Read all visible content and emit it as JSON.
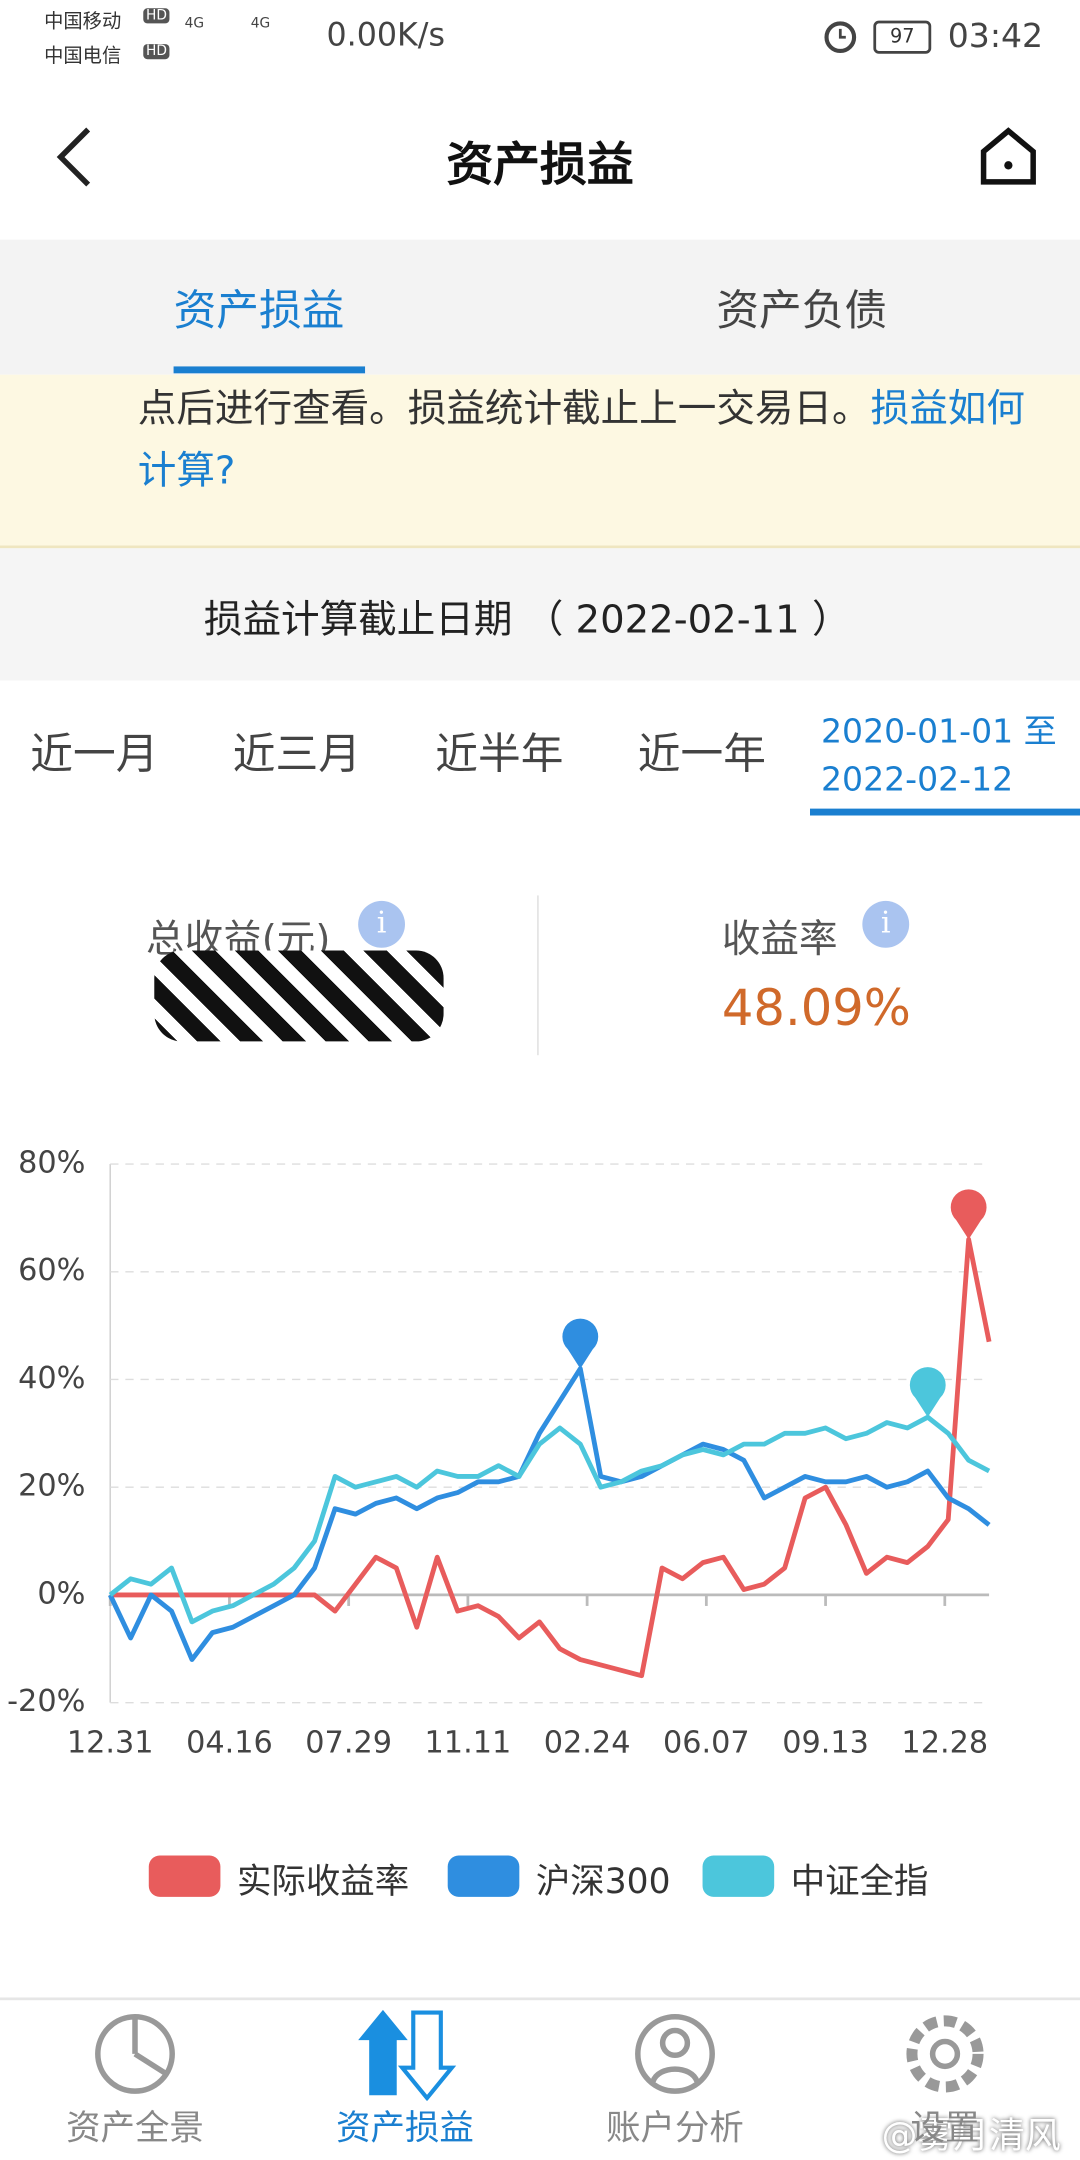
{
  "status_bar": {
    "carrier1": "中国移动",
    "carrier2": "中国电信",
    "hd": "HD",
    "network": "4G",
    "speed": "0.00K/s",
    "battery": "97",
    "time": "03:42"
  },
  "header": {
    "title": "资产损益"
  },
  "tabs": [
    "资产损益",
    "资产负债"
  ],
  "notice": {
    "text": "点后进行查看。损益统计截止上一交易日。",
    "link": "损益如何计算?"
  },
  "cutoff": "损益计算截止日期 （ 2022-02-11 ）",
  "periods": [
    "近一月",
    "近三月",
    "近半年",
    "近一年"
  ],
  "custom_range": {
    "start": "2020-01-01 至",
    "end": "2022-02-12"
  },
  "stats": {
    "total_label": "总收益(元)",
    "rate_label": "收益率",
    "rate_value": "48.09%"
  },
  "chart_data": {
    "type": "line",
    "x": [
      0,
      12,
      24,
      36,
      48,
      60,
      72,
      84,
      96,
      108,
      120,
      132,
      144,
      156,
      168,
      180,
      192,
      204,
      216,
      228,
      240,
      252,
      264,
      276,
      288,
      300,
      312,
      324,
      336,
      348,
      360,
      372,
      384,
      396,
      408,
      420,
      432,
      444,
      456,
      468,
      480,
      492,
      504,
      516
    ],
    "xlim": [
      0,
      516
    ],
    "xticks": [
      {
        "value": 0,
        "label": "12.31"
      },
      {
        "value": 70,
        "label": "04.16"
      },
      {
        "value": 140,
        "label": "07.29"
      },
      {
        "value": 210,
        "label": "11.11"
      },
      {
        "value": 280,
        "label": "02.24"
      },
      {
        "value": 350,
        "label": "06.07"
      },
      {
        "value": 420,
        "label": "09.13"
      },
      {
        "value": 490,
        "label": "12.28"
      }
    ],
    "ylim": [
      -20,
      80
    ],
    "yticks": [
      {
        "value": -20,
        "label": "-20%"
      },
      {
        "value": 0,
        "label": "0%"
      },
      {
        "value": 20,
        "label": "20%"
      },
      {
        "value": 40,
        "label": "40%"
      },
      {
        "value": 60,
        "label": "60%"
      },
      {
        "value": 80,
        "label": "80%"
      }
    ],
    "grid": true,
    "series": [
      {
        "name": "实际收益率",
        "color": "#e85c5c",
        "values": [
          0,
          0,
          0,
          0,
          0,
          0,
          0,
          0,
          0,
          0,
          0,
          -3,
          2,
          7,
          5,
          -6,
          7,
          -3,
          -2,
          -4,
          -8,
          -5,
          -10,
          -12,
          -13,
          -14,
          -15,
          5,
          3,
          6,
          7,
          1,
          2,
          5,
          18,
          20,
          13,
          4,
          7,
          6,
          9,
          14,
          66,
          47
        ]
      },
      {
        "name": "沪深300",
        "color": "#2f8ee0",
        "values": [
          0,
          -8,
          0,
          -3,
          -12,
          -7,
          -6,
          -4,
          -2,
          0,
          5,
          16,
          15,
          17,
          18,
          16,
          18,
          19,
          21,
          21,
          22,
          30,
          36,
          42,
          22,
          21,
          22,
          24,
          26,
          28,
          27,
          25,
          18,
          20,
          22,
          21,
          21,
          22,
          20,
          21,
          23,
          18,
          16,
          13
        ]
      },
      {
        "name": "中证全指",
        "color": "#4cc6dc",
        "values": [
          0,
          3,
          2,
          5,
          -5,
          -3,
          -2,
          0,
          2,
          5,
          10,
          22,
          20,
          21,
          22,
          20,
          23,
          22,
          22,
          24,
          22,
          28,
          31,
          28,
          20,
          21,
          23,
          24,
          26,
          27,
          26,
          28,
          28,
          30,
          30,
          31,
          29,
          30,
          32,
          31,
          33,
          30,
          25,
          23
        ]
      }
    ]
  },
  "nav": [
    "资产全景",
    "资产损益",
    "账户分析",
    "设置"
  ],
  "watermark": "@雾月清风"
}
